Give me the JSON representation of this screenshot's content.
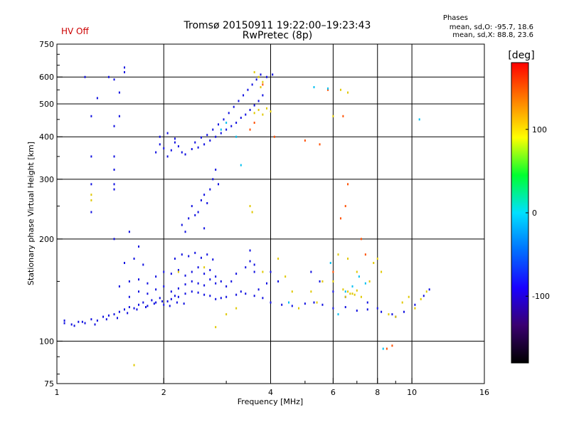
{
  "header": {
    "title_line1": "Tromsø 20150911 19:22:00–19:23:43",
    "title_line2": "RwPretec (8p)",
    "hv_status": "HV Off",
    "phase_heading": "Phases",
    "phase_line1": "mean, sd,O: -95.7, 18.6",
    "phase_line2": "mean, sd,X:  88.8, 23.6",
    "hv_color": "#cc0000"
  },
  "chart_data": {
    "type": "scatter",
    "xlabel": "Frequency [MHz]",
    "ylabel": "Stationary phase Virtual Height [km]",
    "x_scale": "log",
    "y_scale": "log",
    "xlim": [
      1,
      16
    ],
    "ylim": [
      75,
      750
    ],
    "x_ticks": [
      1,
      2,
      4,
      6,
      8,
      10,
      16
    ],
    "y_ticks": [
      75,
      100,
      200,
      300,
      400,
      500,
      600,
      750
    ],
    "x_tick_labels": [
      "1",
      "2",
      "4",
      "6",
      "8",
      "10",
      "16"
    ],
    "y_tick_labels": [
      "75",
      "100",
      "200",
      "300",
      "400",
      "500",
      "600",
      "750"
    ],
    "major_grid_x": [
      2,
      4,
      6,
      8,
      10
    ],
    "major_grid_y": [
      100,
      200,
      300,
      400,
      500,
      600
    ],
    "colorbar": {
      "label": "[deg]",
      "range": [
        -180,
        180
      ],
      "tick_values": [
        100,
        0,
        -100
      ],
      "tick_labels": [
        "100",
        "0",
        "-100"
      ],
      "colors": [
        "#000000",
        "#3a0070",
        "#1a00ff",
        "#0070ff",
        "#00e0ff",
        "#00ff30",
        "#ffff00",
        "#ff8000",
        "#ff0000"
      ]
    },
    "series": [
      {
        "description": "O-mode trace (phase about -100 deg)",
        "color": "#1010e0",
        "points": [
          [
            1.05,
            115
          ],
          [
            1.1,
            112
          ],
          [
            1.15,
            114
          ],
          [
            1.2,
            113
          ],
          [
            1.25,
            116
          ],
          [
            1.3,
            115
          ],
          [
            1.35,
            118
          ],
          [
            1.4,
            119
          ],
          [
            1.45,
            120
          ],
          [
            1.5,
            122
          ],
          [
            1.55,
            124
          ],
          [
            1.6,
            126
          ],
          [
            1.65,
            125
          ],
          [
            1.7,
            128
          ],
          [
            1.75,
            130
          ],
          [
            1.8,
            127
          ],
          [
            1.85,
            132
          ],
          [
            1.9,
            130
          ],
          [
            1.95,
            134
          ],
          [
            2.0,
            128
          ],
          [
            2.05,
            131
          ],
          [
            2.1,
            133
          ],
          [
            2.15,
            136
          ],
          [
            2.2,
            135
          ],
          [
            2.3,
            138
          ],
          [
            2.4,
            140
          ],
          [
            2.5,
            139
          ],
          [
            2.6,
            137
          ],
          [
            2.7,
            136
          ],
          [
            2.8,
            133
          ],
          [
            2.9,
            134
          ],
          [
            3.0,
            135
          ],
          [
            3.2,
            137
          ],
          [
            3.4,
            138
          ],
          [
            3.6,
            136
          ],
          [
            3.8,
            134
          ],
          [
            4.0,
            130
          ],
          [
            4.3,
            128
          ],
          [
            4.6,
            127
          ],
          [
            5.0,
            129
          ],
          [
            5.3,
            130
          ],
          [
            5.6,
            128
          ],
          [
            6.0,
            125
          ],
          [
            6.5,
            126
          ],
          [
            7.0,
            123
          ],
          [
            7.5,
            124
          ],
          [
            8.2,
            122
          ],
          [
            8.8,
            120
          ],
          [
            9.5,
            122
          ],
          [
            10.2,
            128
          ],
          [
            10.8,
            136
          ],
          [
            11.2,
            142
          ],
          [
            1.5,
            145
          ],
          [
            1.6,
            150
          ],
          [
            1.7,
            152
          ],
          [
            1.8,
            148
          ],
          [
            1.9,
            155
          ],
          [
            2.0,
            160
          ],
          [
            2.1,
            158
          ],
          [
            2.2,
            162
          ],
          [
            2.3,
            156
          ],
          [
            2.4,
            160
          ],
          [
            2.5,
            165
          ],
          [
            2.6,
            158
          ],
          [
            2.7,
            162
          ],
          [
            2.8,
            155
          ],
          [
            2.9,
            150
          ],
          [
            3.2,
            158
          ],
          [
            3.4,
            165
          ],
          [
            3.5,
            172
          ],
          [
            3.6,
            168
          ],
          [
            1.55,
            170
          ],
          [
            1.65,
            175
          ],
          [
            1.75,
            168
          ],
          [
            2.15,
            175
          ],
          [
            2.25,
            180
          ],
          [
            2.35,
            178
          ],
          [
            2.45,
            182
          ],
          [
            2.55,
            176
          ],
          [
            2.65,
            180
          ],
          [
            2.75,
            174
          ],
          [
            2.3,
            210
          ],
          [
            2.35,
            230
          ],
          [
            2.4,
            250
          ],
          [
            2.5,
            240
          ],
          [
            2.55,
            260
          ],
          [
            2.6,
            270
          ],
          [
            2.65,
            255
          ],
          [
            2.7,
            280
          ],
          [
            2.75,
            300
          ],
          [
            2.8,
            320
          ],
          [
            2.85,
            290
          ],
          [
            2.25,
            220
          ],
          [
            2.45,
            235
          ],
          [
            2.6,
            215
          ],
          [
            1.9,
            360
          ],
          [
            1.95,
            380
          ],
          [
            2.0,
            370
          ],
          [
            2.05,
            350
          ],
          [
            2.1,
            365
          ],
          [
            2.15,
            385
          ],
          [
            2.2,
            375
          ],
          [
            2.25,
            360
          ],
          [
            2.3,
            355
          ],
          [
            2.4,
            368
          ],
          [
            2.5,
            372
          ],
          [
            2.6,
            380
          ],
          [
            2.7,
            390
          ],
          [
            2.8,
            400
          ],
          [
            2.9,
            410
          ],
          [
            3.0,
            420
          ],
          [
            3.1,
            430
          ],
          [
            3.2,
            440
          ],
          [
            3.3,
            455
          ],
          [
            3.4,
            465
          ],
          [
            3.5,
            480
          ],
          [
            3.6,
            495
          ],
          [
            3.7,
            510
          ],
          [
            3.8,
            530
          ],
          [
            1.95,
            400
          ],
          [
            2.05,
            410
          ],
          [
            2.15,
            395
          ],
          [
            2.45,
            385
          ],
          [
            2.55,
            398
          ],
          [
            2.65,
            405
          ],
          [
            2.75,
            420
          ],
          [
            2.85,
            435
          ],
          [
            2.95,
            450
          ],
          [
            3.05,
            470
          ],
          [
            3.15,
            490
          ],
          [
            3.25,
            510
          ],
          [
            3.35,
            530
          ],
          [
            3.45,
            550
          ],
          [
            3.55,
            570
          ],
          [
            3.65,
            590
          ],
          [
            3.75,
            610
          ],
          [
            3.9,
            600
          ],
          [
            4.05,
            610
          ],
          [
            1.05,
            113
          ],
          [
            1.12,
            111
          ],
          [
            1.18,
            114
          ],
          [
            1.28,
            112
          ],
          [
            1.38,
            116
          ],
          [
            1.48,
            117
          ],
          [
            1.58,
            121
          ],
          [
            1.68,
            124
          ],
          [
            1.78,
            126
          ],
          [
            1.88,
            129
          ],
          [
            1.98,
            131
          ],
          [
            2.08,
            127
          ],
          [
            2.18,
            130
          ],
          [
            2.28,
            129
          ],
          [
            1.6,
            135
          ],
          [
            1.7,
            140
          ],
          [
            1.8,
            138
          ],
          [
            1.9,
            142
          ],
          [
            2.0,
            145
          ],
          [
            2.1,
            140
          ],
          [
            2.2,
            143
          ],
          [
            2.3,
            147
          ],
          [
            2.4,
            150
          ],
          [
            2.5,
            148
          ],
          [
            2.6,
            146
          ],
          [
            2.7,
            152
          ],
          [
            2.8,
            148
          ],
          [
            1.2,
            600
          ],
          [
            1.4,
            600
          ],
          [
            1.45,
            590
          ],
          [
            1.55,
            640
          ],
          [
            1.55,
            620
          ],
          [
            1.5,
            540
          ],
          [
            1.3,
            520
          ],
          [
            1.25,
            460
          ],
          [
            1.5,
            460
          ],
          [
            1.45,
            430
          ],
          [
            1.25,
            350
          ],
          [
            1.45,
            350
          ],
          [
            1.45,
            320
          ],
          [
            1.45,
            290
          ],
          [
            1.45,
            280
          ],
          [
            1.6,
            210
          ],
          [
            1.45,
            200
          ],
          [
            1.7,
            190
          ],
          [
            1.25,
            240
          ],
          [
            1.25,
            290
          ],
          [
            3.5,
            185
          ],
          [
            3.6,
            160
          ],
          [
            4.0,
            160
          ],
          [
            4.2,
            150
          ],
          [
            5.2,
            160
          ],
          [
            5.5,
            150
          ],
          [
            6.0,
            140
          ],
          [
            6.5,
            135
          ],
          [
            7.5,
            130
          ],
          [
            8.0,
            125
          ],
          [
            9.0,
            118
          ],
          [
            3.0,
            145
          ],
          [
            3.1,
            150
          ],
          [
            3.3,
            140
          ],
          [
            3.7,
            142
          ],
          [
            3.9,
            148
          ]
        ]
      },
      {
        "description": "X-mode and scattered echoes (phase about +90 deg)",
        "color": "#e0c800",
        "points": [
          [
            3.6,
            470
          ],
          [
            3.7,
            480
          ],
          [
            3.8,
            465
          ],
          [
            3.9,
            485
          ],
          [
            4.0,
            475
          ],
          [
            3.75,
            560
          ],
          [
            3.8,
            580
          ],
          [
            3.7,
            600
          ],
          [
            3.6,
            620
          ],
          [
            3.5,
            250
          ],
          [
            3.55,
            240
          ],
          [
            2.2,
            160
          ],
          [
            2.6,
            165
          ],
          [
            3.0,
            120
          ],
          [
            3.2,
            125
          ],
          [
            4.6,
            140
          ],
          [
            5.2,
            140
          ],
          [
            5.6,
            150
          ],
          [
            6.0,
            150
          ],
          [
            6.4,
            142
          ],
          [
            6.6,
            140
          ],
          [
            6.8,
            138
          ],
          [
            7.0,
            141
          ],
          [
            7.2,
            135
          ],
          [
            7.6,
            150
          ],
          [
            7.8,
            170
          ],
          [
            8.0,
            175
          ],
          [
            8.2,
            160
          ],
          [
            8.6,
            120
          ],
          [
            9.0,
            118
          ],
          [
            9.4,
            130
          ],
          [
            9.8,
            135
          ],
          [
            10.2,
            125
          ],
          [
            10.6,
            133
          ],
          [
            11.0,
            140
          ],
          [
            6.2,
            180
          ],
          [
            6.6,
            175
          ],
          [
            7.0,
            160
          ],
          [
            5.4,
            130
          ],
          [
            4.8,
            125
          ],
          [
            1.25,
            270
          ],
          [
            1.25,
            260
          ],
          [
            1.65,
            85
          ],
          [
            2.8,
            110
          ],
          [
            3.8,
            160
          ],
          [
            4.2,
            175
          ],
          [
            4.4,
            155
          ],
          [
            6.3,
            550
          ],
          [
            6.6,
            540
          ],
          [
            6.0,
            460
          ],
          [
            6.5,
            135
          ],
          [
            6.7,
            138
          ],
          [
            6.9,
            137
          ]
        ]
      },
      {
        "description": "scattered orange / red echoes",
        "color": "#ff5000",
        "points": [
          [
            3.5,
            420
          ],
          [
            3.6,
            440
          ],
          [
            3.8,
            570
          ],
          [
            4.1,
            400
          ],
          [
            5.0,
            390
          ],
          [
            5.5,
            380
          ],
          [
            6.3,
            230
          ],
          [
            6.5,
            250
          ],
          [
            6.6,
            290
          ],
          [
            7.2,
            200
          ],
          [
            8.5,
            95
          ],
          [
            8.8,
            97
          ],
          [
            6.4,
            460
          ],
          [
            6.0,
            160
          ],
          [
            7.4,
            180
          ],
          [
            5.8,
            550
          ]
        ]
      },
      {
        "description": "cyan echoes",
        "color": "#00c0f0",
        "points": [
          [
            2.9,
            420
          ],
          [
            3.0,
            440
          ],
          [
            3.2,
            400
          ],
          [
            3.3,
            330
          ],
          [
            5.3,
            560
          ],
          [
            5.8,
            555
          ],
          [
            5.9,
            170
          ],
          [
            6.5,
            140
          ],
          [
            6.8,
            145
          ],
          [
            7.1,
            155
          ],
          [
            7.4,
            148
          ],
          [
            8.3,
            95
          ],
          [
            10.5,
            450
          ],
          [
            6.2,
            120
          ],
          [
            4.5,
            130
          ]
        ]
      }
    ]
  }
}
